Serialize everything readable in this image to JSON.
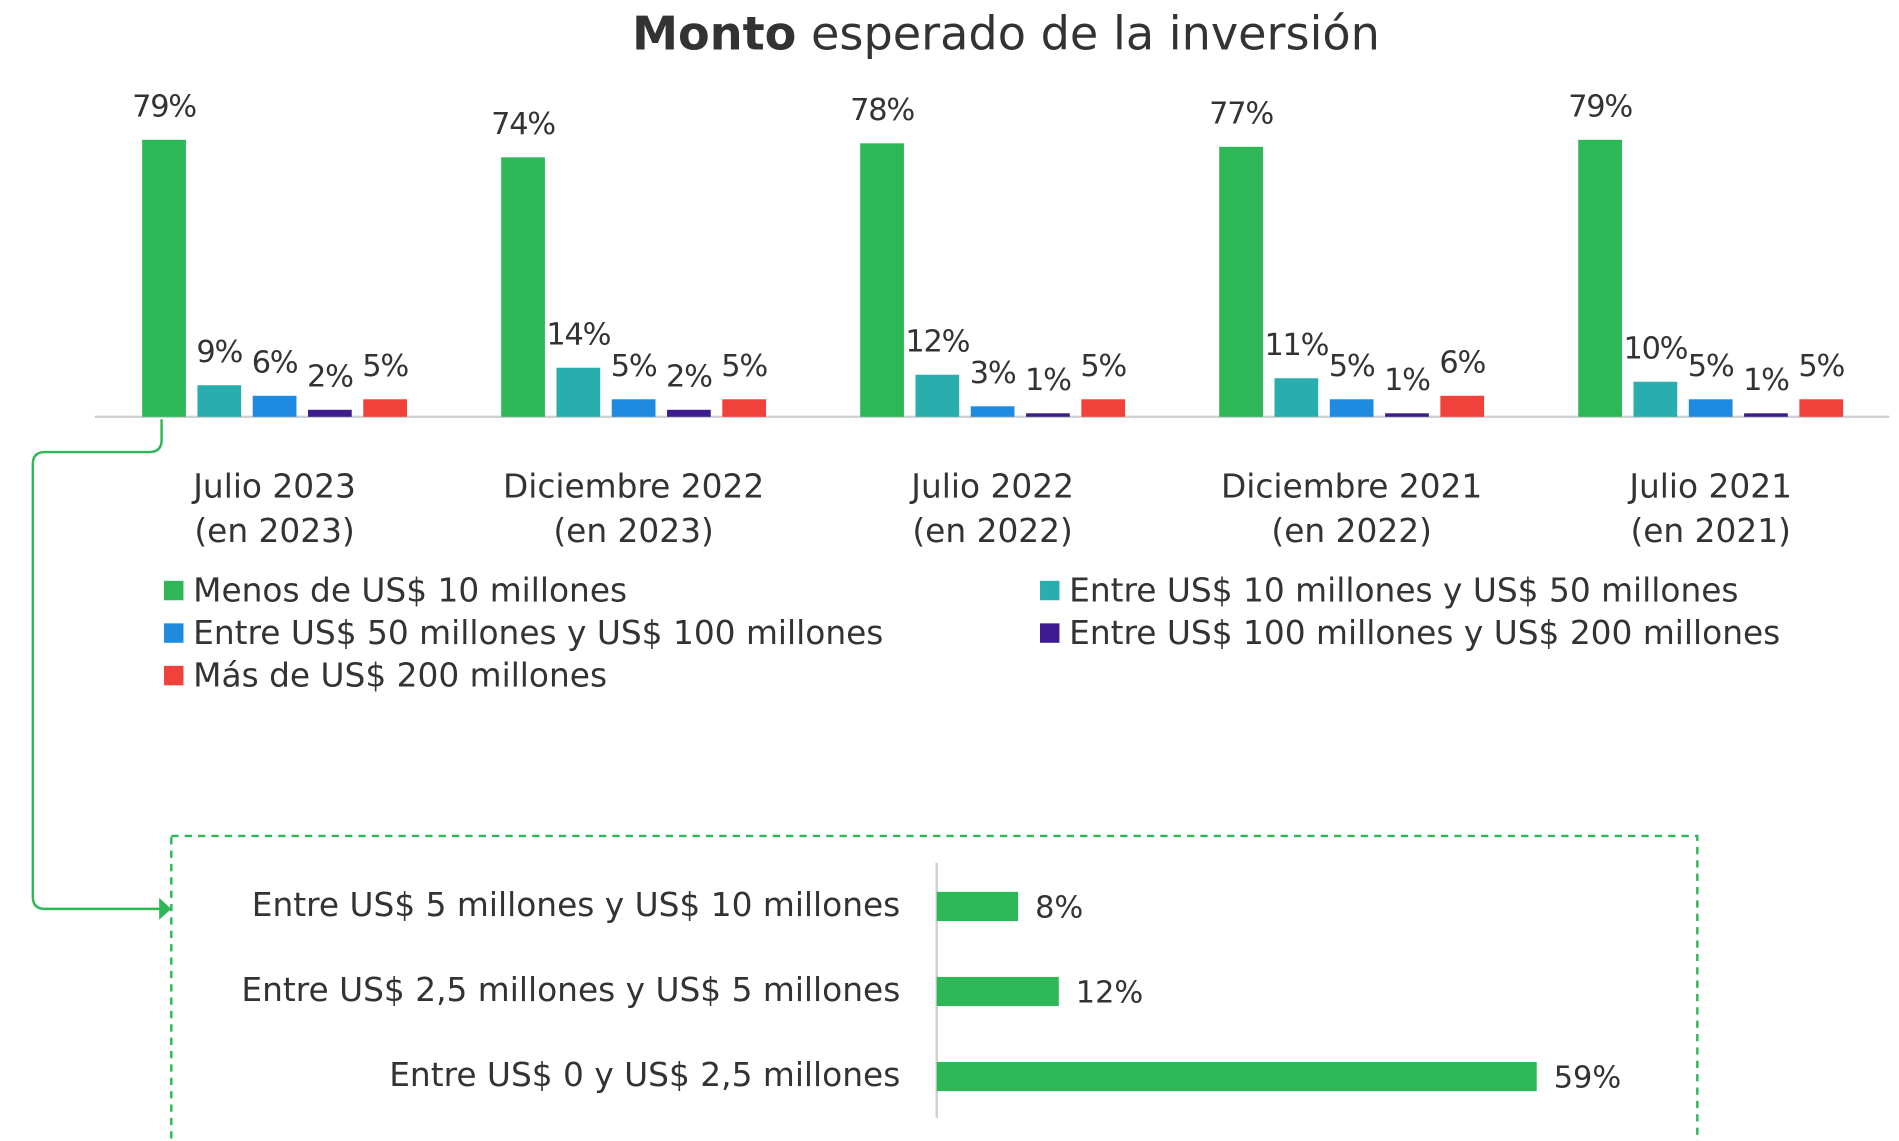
{
  "chart_data": [
    {
      "type": "grouped-bar",
      "title": "Monto esperado de la inversión",
      "categories": [
        "Julio 2023\n(en 2023)",
        "Diciembre 2022\n(en 2023)",
        "Julio 2022\n(en 2022)",
        "Diciembre 2021\n(en 2022)",
        "Julio 2021\n(en 2021)"
      ],
      "series": [
        {
          "name": "Menos de US$ 10 millones",
          "color": "#2db757",
          "values": [
            79,
            74,
            78,
            77,
            79
          ],
          "value_labels": [
            "79%",
            "74%",
            "78%",
            "77%",
            "79%"
          ]
        },
        {
          "name": "Entre US$ 10 millones y US$ 50 millones",
          "color": "#2aaead",
          "values": [
            9,
            14,
            12,
            11,
            10
          ],
          "value_labels": [
            "9%",
            "14%",
            "12%",
            "11%",
            "10%"
          ]
        },
        {
          "name": "Entre US$ 50 millones y US$ 100 millones",
          "color": "#1f8be0",
          "values": [
            6,
            5,
            3,
            5,
            5
          ],
          "value_labels": [
            "6%",
            "5%",
            "3%",
            "5%",
            "5%"
          ]
        },
        {
          "name": "Entre US$ 100 millones y US$ 200 millones",
          "color": "#3d1c8f",
          "values": [
            2,
            2,
            1,
            1,
            1
          ],
          "value_labels": [
            "2%",
            "2%",
            "1%",
            "1%",
            "1%"
          ]
        },
        {
          "name": "Más de US$ 200 millones",
          "color": "#f0413a",
          "values": [
            5,
            5,
            5,
            6,
            5
          ],
          "value_labels": [
            "5%",
            "5%",
            "5%",
            "6%",
            "5%"
          ]
        }
      ]
    },
    {
      "type": "hbar",
      "categories": [
        "Entre US$ 5 millones y US$ 10 millones",
        "Entre US$ 2,5 millones y US$ 5 millones",
        "Entre US$ 0 y US$ 2,5 millones"
      ],
      "values": [
        8,
        12,
        59
      ],
      "value_labels": [
        "8%",
        "12%",
        "59%"
      ],
      "color": "#2db757"
    }
  ]
}
